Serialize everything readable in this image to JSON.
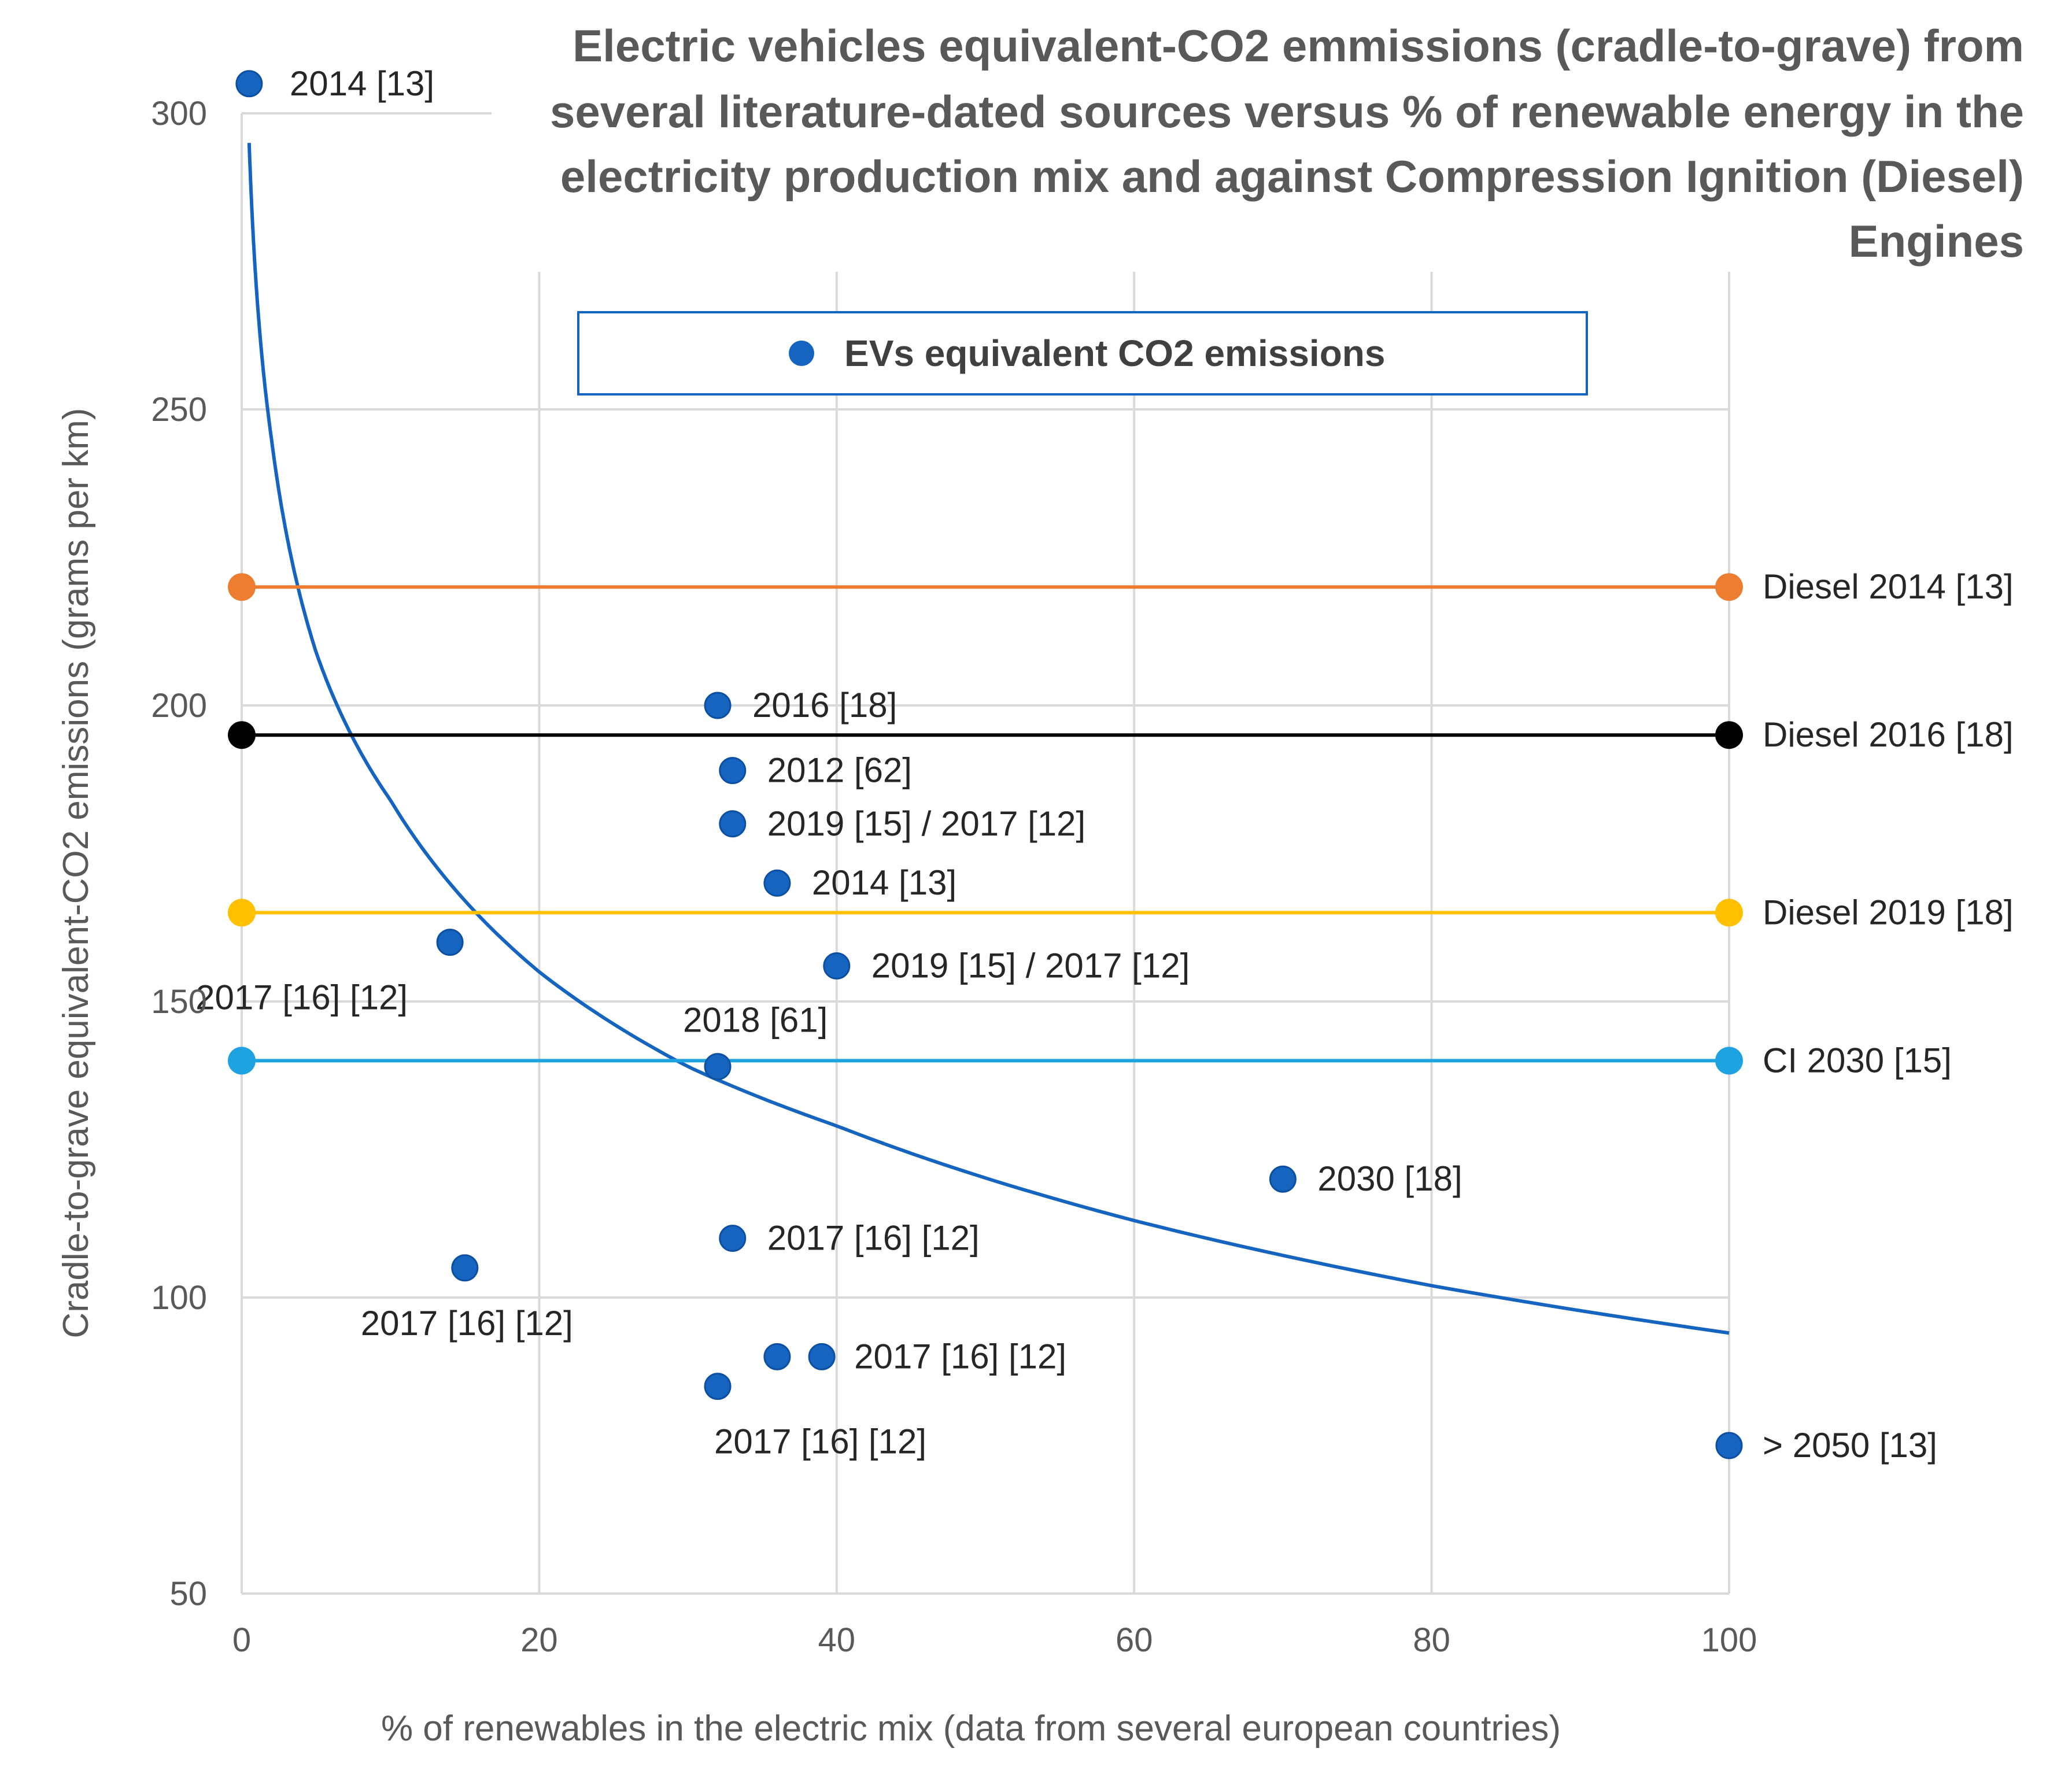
{
  "chart_data": {
    "type": "scatter",
    "title_lines": [
      "Electric vehicles equivalent-CO2 emmissions (cradle-to-grave) from",
      "several literature-dated sources versus % of renewable energy in the",
      "electricity production mix and against Compression Ignition (Diesel)",
      "Engines"
    ],
    "xlabel": "% of renewables in the electric mix (data from several european countries)",
    "ylabel": "Cradle-to-grave equivalent-CO2 emissions (grams per  km)",
    "xlim": [
      0,
      100
    ],
    "ylim": [
      50,
      300
    ],
    "x_ticks": [
      0,
      20,
      40,
      60,
      80,
      100
    ],
    "y_ticks": [
      50,
      100,
      150,
      200,
      250,
      300
    ],
    "grid": true,
    "legend": {
      "label": "EVs equivalent CO2 emissions",
      "position": "top-center"
    },
    "series": [
      {
        "name": "EVs equivalent CO2 emissions",
        "color": "#1565c0",
        "points": [
          {
            "x": 0.5,
            "y": 305,
            "label": "2014 [13]"
          },
          {
            "x": 32,
            "y": 200,
            "label": "2016 [18]"
          },
          {
            "x": 33,
            "y": 189,
            "label": "2012 [62]"
          },
          {
            "x": 33,
            "y": 180,
            "label": "2019  [15] / 2017  [12]"
          },
          {
            "x": 36,
            "y": 170,
            "label": "2014 [13]"
          },
          {
            "x": 14,
            "y": 160,
            "label": "2017 [16] [12]"
          },
          {
            "x": 40,
            "y": 156,
            "label": "2019  [15] / 2017  [12]"
          },
          {
            "x": 32,
            "y": 139,
            "label": "2018 [61]"
          },
          {
            "x": 70,
            "y": 120,
            "label": "2030 [18]"
          },
          {
            "x": 33,
            "y": 110,
            "label": "2017 [16] [12]"
          },
          {
            "x": 15,
            "y": 105,
            "label": "2017 [16] [12]"
          },
          {
            "x": 36,
            "y": 90,
            "label": ""
          },
          {
            "x": 39,
            "y": 90,
            "label": "2017 [16] [12]"
          },
          {
            "x": 32,
            "y": 85,
            "label": "2017 [16] [12]"
          },
          {
            "x": 100,
            "y": 75,
            "label": "> 2050  [13]"
          }
        ]
      }
    ],
    "reference_lines": [
      {
        "name": "Diesel 2014 [13]",
        "y": 220,
        "color": "#ed7d31"
      },
      {
        "name": "Diesel 2016 [18]",
        "y": 195,
        "color": "#000000"
      },
      {
        "name": "Diesel 2019 [18]",
        "y": 165,
        "color": "#ffc000"
      },
      {
        "name": "CI 2030 [15]",
        "y": 140,
        "color": "#1fa2e0"
      }
    ],
    "trendline": {
      "type": "logarithmic",
      "color": "#1565c0",
      "x_range": [
        0.5,
        100
      ],
      "samples": [
        {
          "x": 0.5,
          "y": 295
        },
        {
          "x": 2,
          "y": 245
        },
        {
          "x": 5,
          "y": 209
        },
        {
          "x": 10,
          "y": 184
        },
        {
          "x": 20,
          "y": 155
        },
        {
          "x": 30,
          "y": 139
        },
        {
          "x": 40,
          "y": 129
        },
        {
          "x": 60,
          "y": 113
        },
        {
          "x": 80,
          "y": 102
        },
        {
          "x": 100,
          "y": 94
        }
      ]
    }
  }
}
